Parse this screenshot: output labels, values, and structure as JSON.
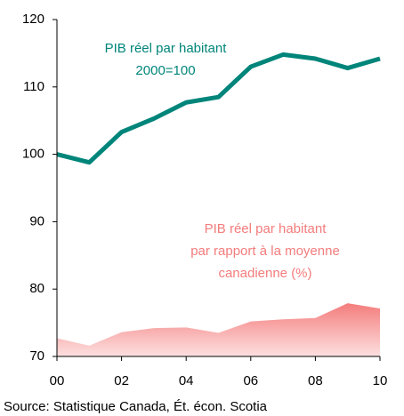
{
  "chart_data": {
    "type": "line",
    "x": [
      2000,
      2001,
      2002,
      2003,
      2004,
      2005,
      2006,
      2007,
      2008,
      2009,
      2010
    ],
    "series": [
      {
        "label": [
          "PIB réel par habitant",
          "2000=100"
        ],
        "color": "#00857a",
        "style": "line",
        "values": [
          100,
          98.8,
          103.3,
          105.3,
          107.7,
          108.5,
          113.0,
          114.8,
          114.2,
          112.8,
          114.2
        ]
      },
      {
        "label": [
          "PIB réel par habitant",
          "par rapport à la moyenne",
          "canadienne (%)"
        ],
        "color": "#f47c7c",
        "style": "area",
        "values": [
          72.7,
          71.6,
          73.6,
          74.2,
          74.3,
          73.5,
          75.2,
          75.5,
          75.7,
          77.9,
          77.1
        ]
      }
    ],
    "xlim": [
      2000,
      2010
    ],
    "xticks": [
      {
        "value": 2000,
        "label": "00"
      },
      {
        "value": 2002,
        "label": "02"
      },
      {
        "value": 2004,
        "label": "04"
      },
      {
        "value": 2006,
        "label": "06"
      },
      {
        "value": 2008,
        "label": "08"
      },
      {
        "value": 2010,
        "label": "10"
      }
    ],
    "ylim": [
      70,
      120
    ],
    "yticks": [
      70,
      80,
      90,
      100,
      110,
      120
    ],
    "source": "Source: Statistique Canada, Ét. écon. Scotia"
  }
}
